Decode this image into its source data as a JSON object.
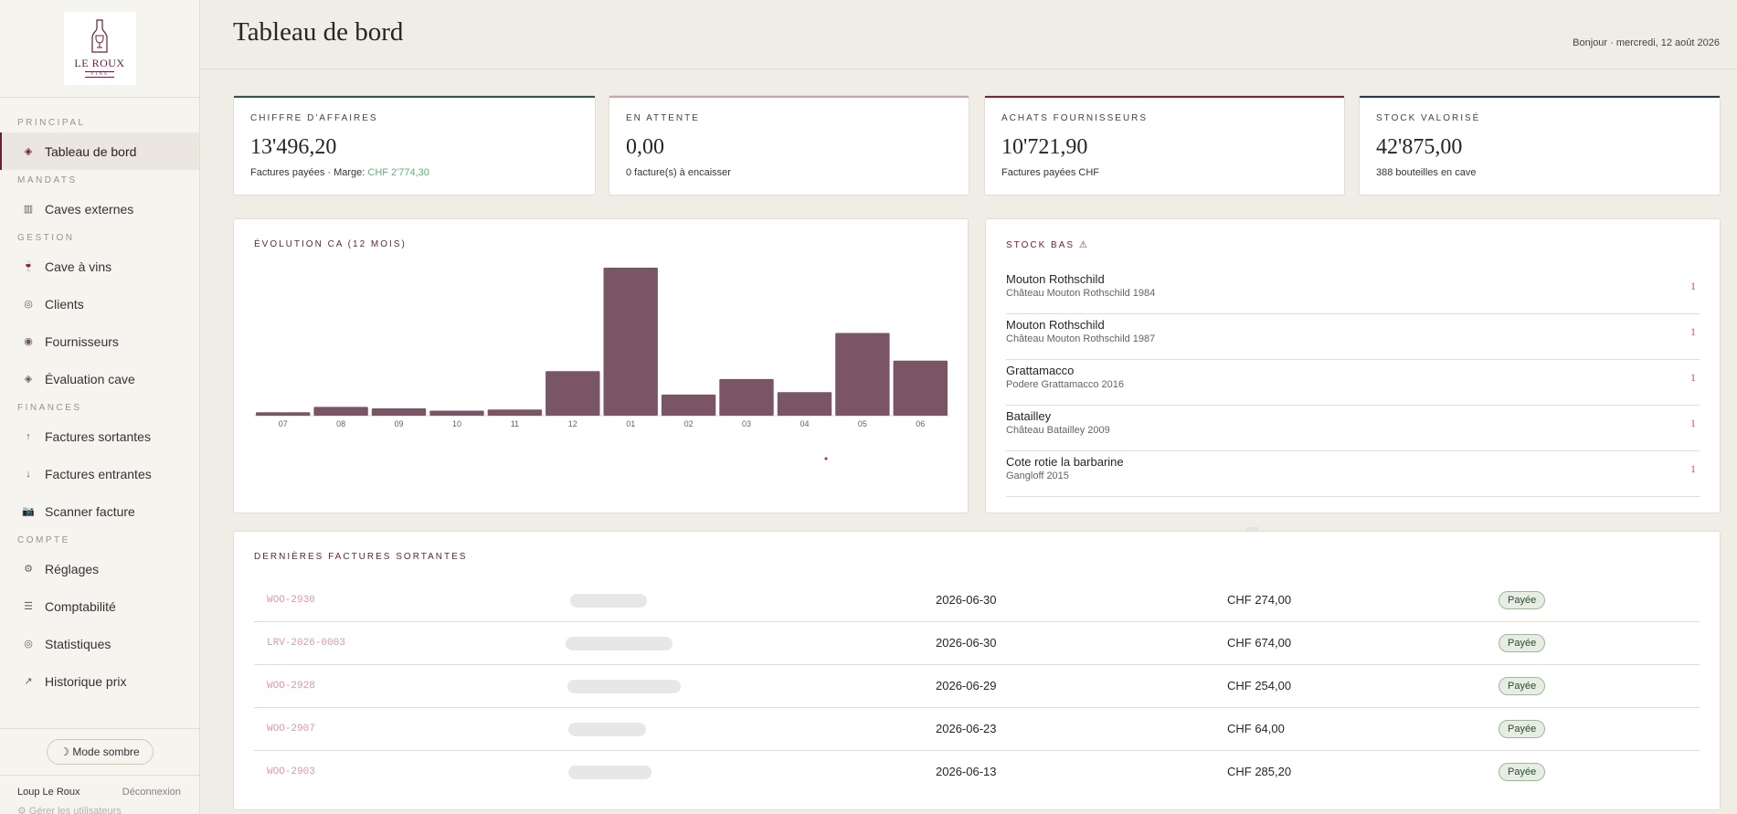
{
  "brand": {
    "logo_text": "LE ROUX",
    "logo_sub": "VINS"
  },
  "header": {
    "title": "Tableau de bord",
    "greeting": "Bonjour · mercredi, 12 août 2026"
  },
  "sidebar": {
    "sections": [
      {
        "label": "PRINCIPAL",
        "items": [
          {
            "label": "Tableau de bord",
            "icon": "diamond-icon",
            "glyph": "◈",
            "active": true
          }
        ]
      },
      {
        "label": "MANDATS",
        "items": [
          {
            "label": "Caves externes",
            "icon": "cellar-icon",
            "glyph": "▥"
          }
        ]
      },
      {
        "label": "GESTION",
        "items": [
          {
            "label": "Cave à vins",
            "icon": "wine-glass-icon",
            "glyph": "🍷"
          },
          {
            "label": "Clients",
            "icon": "clients-icon",
            "glyph": "◎"
          },
          {
            "label": "Fournisseurs",
            "icon": "suppliers-icon",
            "glyph": "◉"
          },
          {
            "label": "Évaluation cave",
            "icon": "evaluation-icon",
            "glyph": "◈"
          }
        ]
      },
      {
        "label": "FINANCES",
        "items": [
          {
            "label": "Factures sortantes",
            "icon": "arrow-up-icon",
            "glyph": "↑"
          },
          {
            "label": "Factures entrantes",
            "icon": "arrow-down-icon",
            "glyph": "↓"
          },
          {
            "label": "Scanner facture",
            "icon": "camera-icon",
            "glyph": "📷"
          }
        ]
      },
      {
        "label": "COMPTE",
        "items": [
          {
            "label": "Réglages",
            "icon": "settings-icon",
            "glyph": "⚙"
          },
          {
            "label": "Comptabilité",
            "icon": "accounting-icon",
            "glyph": "☰"
          },
          {
            "label": "Statistiques",
            "icon": "statistics-icon",
            "glyph": "◎"
          },
          {
            "label": "Historique prix",
            "icon": "trend-icon",
            "glyph": "↗"
          }
        ]
      }
    ],
    "dark_mode_label": "☽ Mode sombre",
    "user_name": "Loup Le Roux",
    "logout_label": "Déconnexion",
    "manage_users_label": "⚙ Gérer les utilisateurs"
  },
  "kpis": [
    {
      "label": "CHIFFRE D'AFFAIRES",
      "value": "13'496,20",
      "sub": "Factures payées · Marge: ",
      "sub_highlight": "CHF 2'774,30",
      "accent": "#2e5a3f"
    },
    {
      "label": "EN ATTENTE",
      "value": "0,00",
      "sub": "0 facture(s) à encaisser",
      "sub_highlight": "",
      "accent": "#c9a3ae"
    },
    {
      "label": "ACHATS FOURNISSEURS",
      "value": "10'721,90",
      "sub": "Factures payées CHF",
      "sub_highlight": "",
      "accent": "#8b1e2e"
    },
    {
      "label": "STOCK VALORISÉ",
      "value": "42'875,00",
      "sub": "388 bouteilles en cave",
      "sub_highlight": "",
      "accent": "#1f3a5c"
    }
  ],
  "chart_card": {
    "title": "ÉVOLUTION CA (12 MOIS)"
  },
  "chart_data": {
    "type": "bar",
    "categories": [
      "07",
      "08",
      "09",
      "10",
      "11",
      "12",
      "01",
      "02",
      "03",
      "04",
      "05",
      "06"
    ],
    "values": [
      120,
      300,
      250,
      170,
      210,
      1520,
      5050,
      720,
      1250,
      800,
      2820,
      1880
    ],
    "title": "ÉVOLUTION CA (12 MOIS)",
    "xlabel": "",
    "ylabel": "",
    "ylim": [
      0,
      5050
    ],
    "grid": false,
    "color": "#7a5565"
  },
  "stock_card": {
    "title": "STOCK BAS ⚠",
    "items": [
      {
        "name": "Mouton Rothschild",
        "desc": "Château Mouton Rothschild 1984",
        "qty": "1"
      },
      {
        "name": "Mouton Rothschild",
        "desc": "Château Mouton Rothschild 1987",
        "qty": "1"
      },
      {
        "name": "Grattamacco",
        "desc": "Podere Grattamacco 2016",
        "qty": "1"
      },
      {
        "name": "Batailley",
        "desc": "Château Batailley 2009",
        "qty": "1"
      },
      {
        "name": "Cote rotie la barbarine",
        "desc": "Gangloff 2015",
        "qty": "1"
      }
    ]
  },
  "invoices": {
    "title": "DERNIÈRES FACTURES SORTANTES",
    "rows": [
      {
        "number": "WOO-2930",
        "date": "2026-06-30",
        "amount": "CHF 274,00",
        "status": "Payée"
      },
      {
        "number": "LRV-2026-0003",
        "date": "2026-06-30",
        "amount": "CHF 674,00",
        "status": "Payée"
      },
      {
        "number": "WOO-2928",
        "date": "2026-06-29",
        "amount": "CHF 254,00",
        "status": "Payée"
      },
      {
        "number": "WOO-2907",
        "date": "2026-06-23",
        "amount": "CHF 64,00",
        "status": "Payée"
      },
      {
        "number": "WOO-2903",
        "date": "2026-06-13",
        "amount": "CHF 285,20",
        "status": "Payée"
      }
    ]
  }
}
